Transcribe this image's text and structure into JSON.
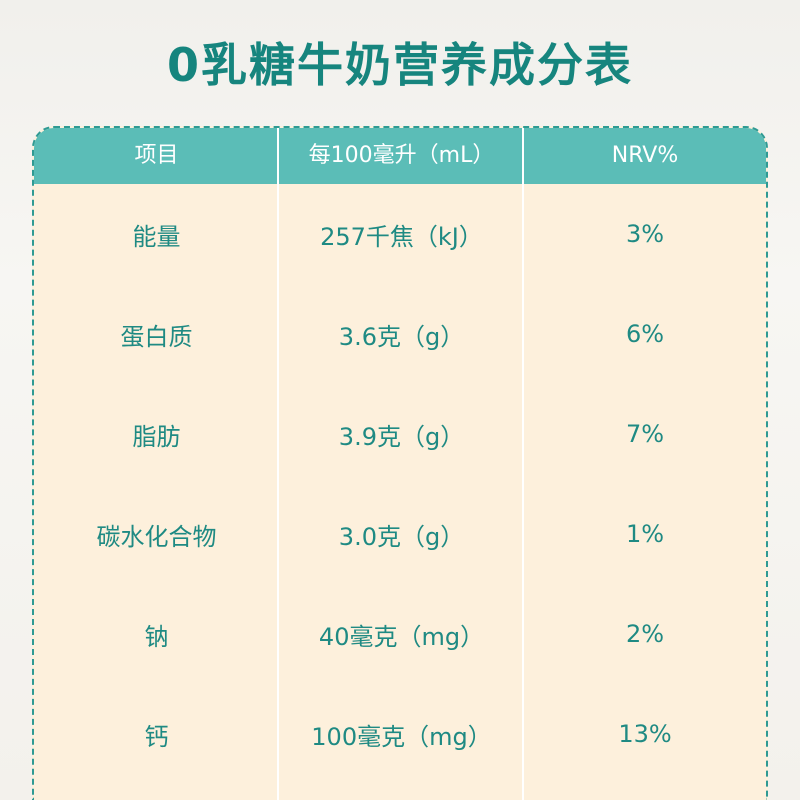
{
  "title": "0乳糖牛奶营养成分表",
  "table": {
    "headers": [
      "项目",
      "每100毫升（mL）",
      "NRV%"
    ],
    "rows": [
      [
        "能量",
        "257千焦（kJ）",
        "3%"
      ],
      [
        "蛋白质",
        "3.6克（g）",
        "6%"
      ],
      [
        "脂肪",
        "3.9克（g）",
        "7%"
      ],
      [
        "碳水化合物",
        "3.0克（g）",
        "1%"
      ],
      [
        "钠",
        "40毫克（mg）",
        "2%"
      ],
      [
        "钙",
        "100毫克（mg）",
        "13%"
      ]
    ]
  },
  "colors": {
    "title": "#16857e",
    "header_bg": "#5bbdb7",
    "body_bg": "#fdf0dc",
    "cell_text": "#1f8a83",
    "border": "#2f9a93"
  }
}
